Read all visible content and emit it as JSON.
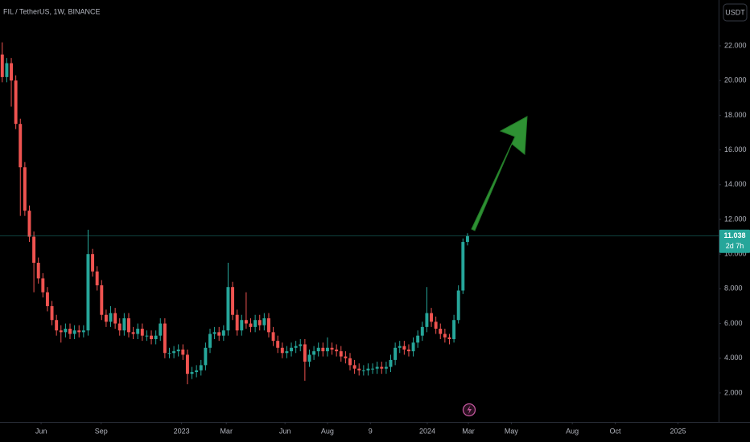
{
  "chart_data": {
    "type": "candlestick",
    "title": "FIL / TetherUS, 1W, BINANCE",
    "currency": "USDT",
    "countdown": "2d 7h",
    "up_color": "#26a69a",
    "down_color": "#ef5350",
    "open": [
      21.5,
      20.2,
      21.0,
      20.0,
      17.5,
      15.0,
      12.5,
      11.0,
      9.5,
      8.6,
      7.8,
      7.0,
      6.2,
      5.6,
      5.5,
      5.7,
      5.4,
      5.6,
      5.5,
      5.6,
      10.0,
      9.0,
      8.2,
      6.5,
      6.1,
      6.6,
      6.0,
      5.6,
      6.3,
      5.5,
      5.4,
      5.7,
      5.3,
      5.3,
      5.1,
      5.3,
      6.0,
      4.3,
      4.3,
      4.4,
      4.5,
      4.2,
      3.1,
      3.2,
      3.3,
      3.6,
      4.6,
      5.4,
      5.5,
      5.3,
      5.6,
      8.1,
      6.5,
      5.6,
      6.2,
      6.0,
      5.8,
      6.2,
      5.9,
      6.3,
      5.5,
      5.0,
      4.6,
      4.3,
      4.4,
      4.6,
      4.7,
      4.8,
      3.8,
      4.2,
      4.4,
      4.6,
      4.4,
      4.6,
      4.5,
      4.4,
      4.1,
      4.0,
      3.6,
      3.4,
      3.3,
      3.3,
      3.4,
      3.4,
      3.5,
      3.4,
      3.5,
      3.9,
      4.6,
      4.7,
      4.5,
      4.4,
      4.9,
      5.3,
      5.8,
      6.6,
      6.1,
      5.7,
      5.4,
      5.2,
      5.1,
      6.2,
      7.9,
      10.7
    ],
    "high": [
      22.2,
      21.3,
      21.3,
      20.3,
      17.8,
      15.3,
      12.8,
      11.3,
      9.8,
      8.9,
      8.1,
      7.3,
      6.5,
      5.9,
      6.0,
      6.0,
      5.9,
      5.9,
      5.9,
      11.4,
      10.3,
      9.3,
      8.5,
      6.8,
      7.0,
      6.9,
      6.3,
      6.6,
      6.6,
      5.8,
      6.0,
      6.0,
      5.6,
      5.6,
      5.6,
      6.3,
      6.3,
      4.6,
      4.7,
      4.8,
      4.8,
      4.5,
      3.5,
      3.6,
      3.9,
      4.9,
      5.7,
      5.8,
      5.8,
      5.9,
      9.5,
      8.4,
      6.8,
      6.5,
      7.8,
      6.3,
      6.5,
      6.5,
      6.6,
      6.6,
      5.8,
      5.3,
      4.9,
      4.7,
      4.9,
      5.0,
      5.1,
      5.1,
      4.5,
      4.7,
      4.9,
      4.9,
      5.2,
      4.9,
      4.8,
      4.7,
      4.4,
      4.3,
      3.9,
      3.7,
      3.6,
      3.7,
      3.7,
      3.8,
      3.8,
      3.8,
      4.2,
      4.9,
      5.0,
      5.0,
      4.8,
      5.2,
      5.6,
      6.1,
      8.1,
      6.9,
      6.4,
      6.0,
      5.7,
      5.4,
      6.5,
      8.2,
      10.9,
      11.2
    ],
    "low": [
      19.9,
      19.9,
      18.5,
      17.2,
      12.2,
      12.2,
      10.7,
      7.8,
      8.3,
      7.5,
      6.7,
      5.9,
      5.3,
      4.9,
      5.2,
      5.1,
      5.1,
      5.2,
      5.2,
      5.3,
      8.7,
      7.9,
      6.2,
      5.8,
      5.8,
      5.7,
      5.3,
      5.3,
      5.2,
      5.1,
      5.1,
      5.0,
      5.0,
      4.8,
      4.8,
      5.0,
      4.0,
      4.0,
      4.0,
      4.1,
      3.9,
      2.5,
      2.8,
      2.9,
      3.0,
      3.3,
      4.3,
      5.1,
      5.0,
      5.0,
      5.3,
      6.2,
      5.3,
      5.3,
      5.7,
      5.5,
      5.5,
      5.6,
      5.6,
      5.2,
      4.7,
      4.3,
      4.0,
      4.0,
      4.1,
      4.3,
      4.4,
      2.7,
      3.5,
      3.9,
      4.1,
      4.1,
      4.1,
      4.2,
      4.1,
      3.8,
      3.7,
      3.3,
      3.1,
      3.0,
      3.0,
      3.0,
      3.1,
      3.1,
      3.1,
      3.1,
      3.2,
      3.6,
      4.3,
      4.2,
      4.1,
      4.1,
      4.6,
      5.0,
      5.5,
      5.8,
      5.4,
      5.1,
      4.9,
      4.8,
      4.9,
      6.0,
      7.7,
      10.5
    ],
    "close": [
      20.2,
      21.0,
      20.0,
      17.5,
      15.0,
      12.5,
      11.0,
      9.5,
      8.6,
      7.8,
      7.0,
      6.2,
      5.6,
      5.5,
      5.7,
      5.4,
      5.6,
      5.5,
      5.6,
      10.0,
      9.0,
      8.2,
      6.5,
      6.1,
      6.6,
      6.0,
      5.6,
      6.3,
      5.5,
      5.4,
      5.7,
      5.3,
      5.3,
      5.1,
      5.3,
      6.0,
      4.3,
      4.3,
      4.4,
      4.5,
      4.2,
      3.1,
      3.2,
      3.3,
      3.6,
      4.6,
      5.4,
      5.5,
      5.3,
      5.6,
      8.1,
      6.5,
      5.6,
      6.2,
      6.0,
      5.8,
      6.2,
      5.9,
      6.3,
      5.5,
      5.0,
      4.6,
      4.3,
      4.4,
      4.6,
      4.7,
      4.8,
      3.8,
      4.2,
      4.4,
      4.6,
      4.4,
      4.6,
      4.5,
      4.4,
      4.1,
      4.0,
      3.6,
      3.4,
      3.3,
      3.3,
      3.4,
      3.4,
      3.5,
      3.4,
      3.5,
      3.9,
      4.6,
      4.7,
      4.5,
      4.4,
      4.9,
      5.3,
      5.8,
      6.6,
      6.1,
      5.7,
      5.4,
      5.2,
      5.1,
      6.2,
      7.9,
      10.7,
      11.038
    ],
    "xlim": [
      -0.5,
      158.6
    ],
    "xticks": [
      {
        "value": 8.6,
        "label": "Jun"
      },
      {
        "value": 21.9,
        "label": "Sep"
      },
      {
        "value": 39.7,
        "label": "2023"
      },
      {
        "value": 49.6,
        "label": "Mar"
      },
      {
        "value": 62.6,
        "label": "Jun"
      },
      {
        "value": 72.0,
        "label": "Aug"
      },
      {
        "value": 81.5,
        "label": "9"
      },
      {
        "value": 94.1,
        "label": "2024"
      },
      {
        "value": 103.2,
        "label": "Mar"
      },
      {
        "value": 112.7,
        "label": "May"
      },
      {
        "value": 126.2,
        "label": "Aug"
      },
      {
        "value": 135.7,
        "label": "Oct"
      },
      {
        "value": 149.6,
        "label": "2025"
      }
    ],
    "ylim": [
      0.33,
      24.64
    ],
    "yticks": [
      {
        "value": 2,
        "label": "2.000"
      },
      {
        "value": 4,
        "label": "4.000"
      },
      {
        "value": 6,
        "label": "6.000"
      },
      {
        "value": 8,
        "label": "8.000"
      },
      {
        "value": 10,
        "label": "10.000"
      },
      {
        "value": 12,
        "label": "12.000"
      },
      {
        "value": 14,
        "label": "14.000"
      },
      {
        "value": 16,
        "label": "16.000"
      },
      {
        "value": 18,
        "label": "18.000"
      },
      {
        "value": 20,
        "label": "20.000"
      },
      {
        "value": 22,
        "label": "22.000"
      }
    ]
  }
}
